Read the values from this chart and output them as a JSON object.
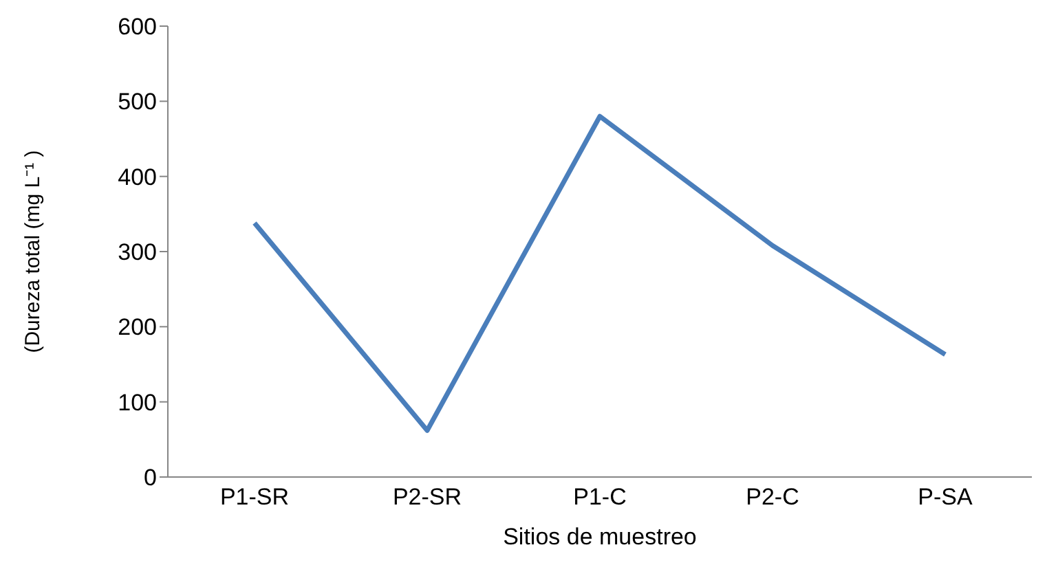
{
  "chart_data": {
    "type": "line",
    "xlabel": "Sitios de muestreo",
    "ylabel": "(Dureza total (mg L⁻¹ )",
    "categories": [
      "P1-SR",
      "P2-SR",
      "P1-C",
      "P2-C",
      "P-SA"
    ],
    "series": [
      {
        "color": "#4a7ebb",
        "values": [
          338,
          62,
          480,
          308,
          163
        ]
      }
    ],
    "ylim": [
      0,
      600
    ],
    "yticks": [
      0,
      100,
      200,
      300,
      400,
      500,
      600
    ],
    "grid": false,
    "legend": false,
    "marker": "none",
    "line_style": "solid"
  }
}
